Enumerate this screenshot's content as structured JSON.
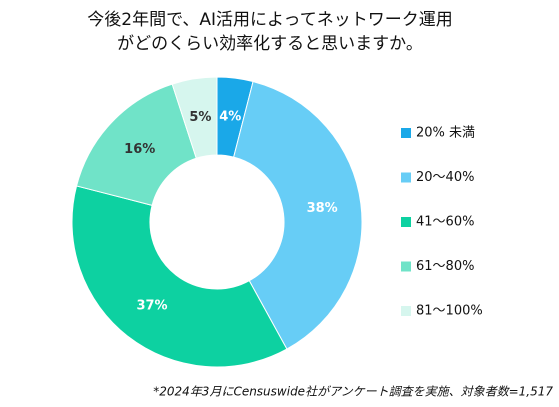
{
  "chart_data": {
    "type": "donut",
    "title": [
      "今後2年間で、AI活用によってネットワーク運用",
      "がどのくらい効率化すると思いますか。"
    ],
    "categories": [
      "20% 未満",
      "20〜40%",
      "41〜60%",
      "61〜80%",
      "81〜100%"
    ],
    "values": [
      4,
      38,
      37,
      16,
      5
    ],
    "value_labels": [
      "4%",
      "38%",
      "37%",
      "16%",
      "5%"
    ],
    "colors": [
      "#1aa8e8",
      "#67cdf6",
      "#0dd1a1",
      "#70e3c8",
      "#d6f6ee"
    ],
    "legend": "right",
    "note": "*2024年3月にCensuswide社がアンケート調査を実施、対象者数=1,517"
  }
}
